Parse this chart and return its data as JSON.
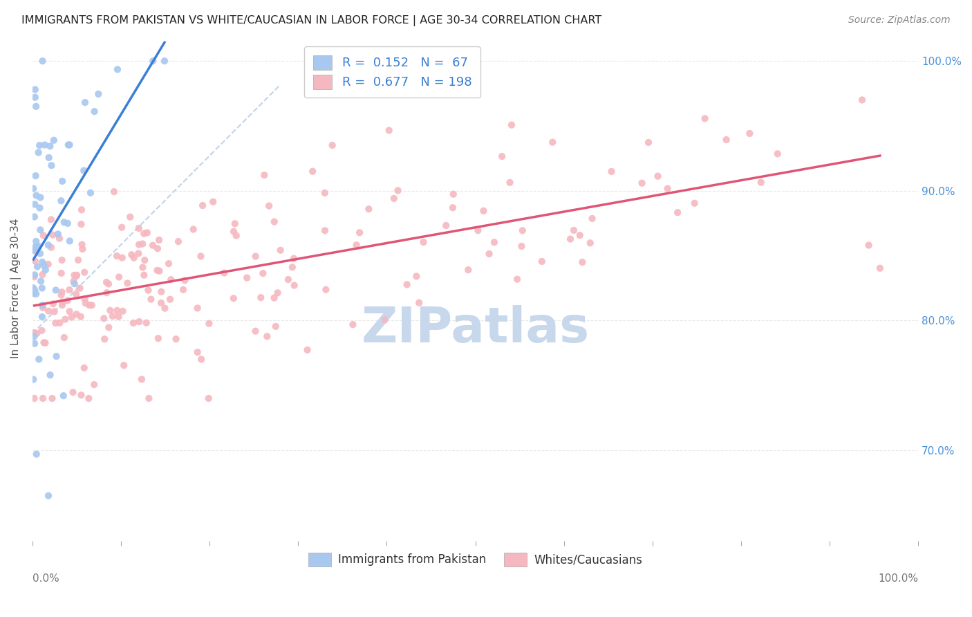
{
  "title": "IMMIGRANTS FROM PAKISTAN VS WHITE/CAUCASIAN IN LABOR FORCE | AGE 30-34 CORRELATION CHART",
  "source": "Source: ZipAtlas.com",
  "ylabel": "In Labor Force | Age 30-34",
  "r_pakistan": 0.152,
  "n_pakistan": 67,
  "r_white": 0.677,
  "n_white": 198,
  "legend_label_blue": "Immigrants from Pakistan",
  "legend_label_pink": "Whites/Caucasians",
  "blue_color": "#a8c8f0",
  "pink_color": "#f5b8c0",
  "trendline_blue": "#3a7fd5",
  "trendline_pink": "#e05575",
  "trendline_dashed_color": "#b0c8e8",
  "text_color_blue": "#3a7fd5",
  "axis_label_color": "#4a90d9",
  "grid_color": "#e8e8e8",
  "xlim": [
    0.0,
    1.0
  ],
  "ylim": [
    0.63,
    1.02
  ],
  "yticks": [
    0.7,
    0.8,
    0.9,
    1.0
  ],
  "ytick_labels": [
    "70.0%",
    "80.0%",
    "90.0%",
    "100.0%"
  ],
  "watermark": "ZIPatlas",
  "watermark_color": "#c8d8ec"
}
